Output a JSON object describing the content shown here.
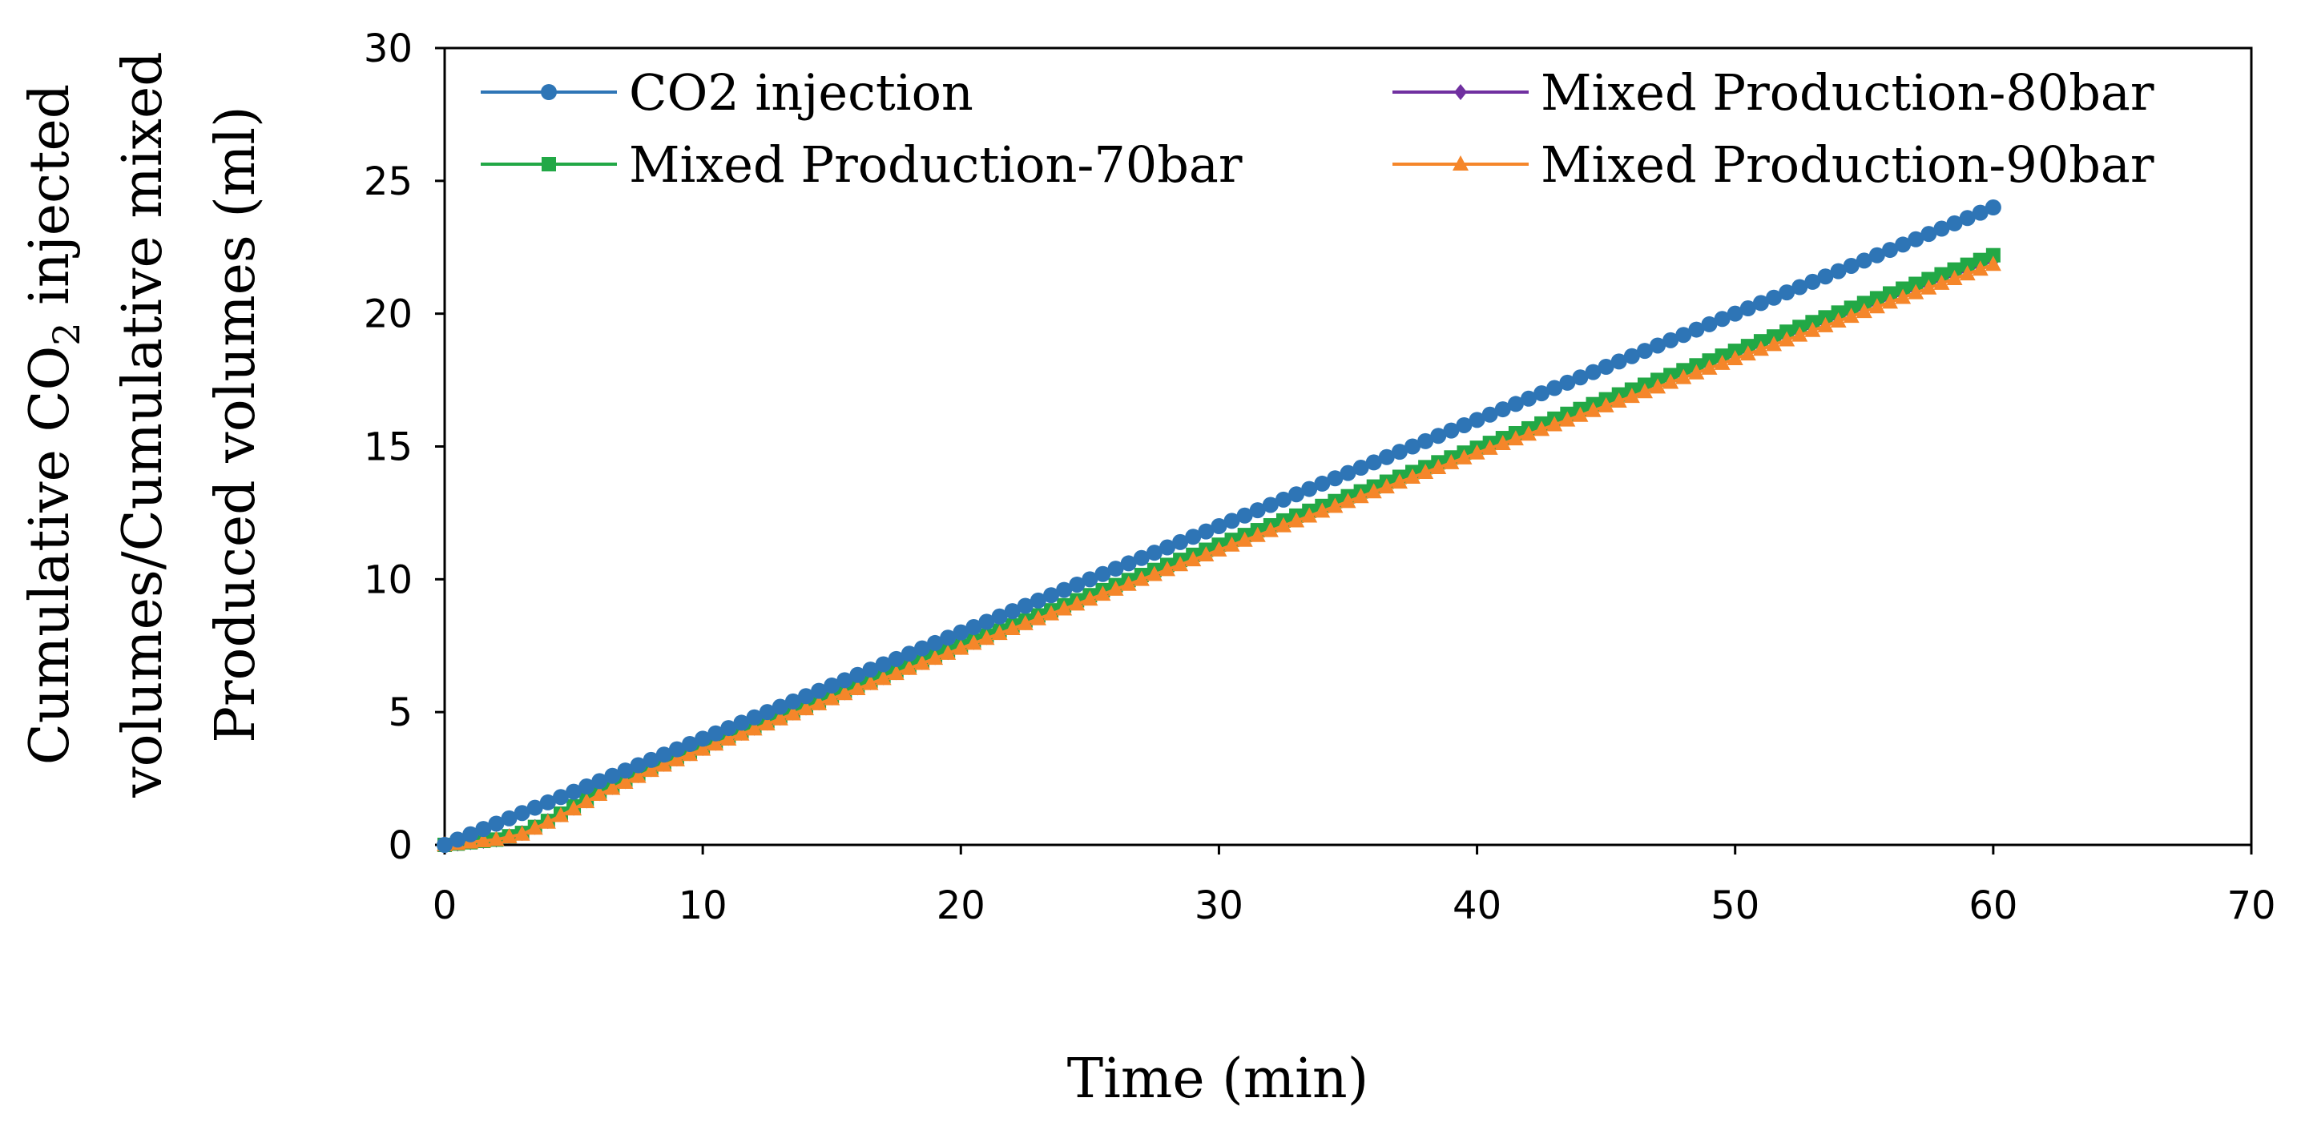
{
  "chart_data": {
    "type": "line",
    "title": "",
    "xlabel": "Time (min)",
    "ylabel_lines": [
      {
        "pre": "Cumulative CO",
        "sub": "2",
        "post": " injected"
      },
      {
        "pre": "volumes/Cumulative mixed",
        "sub": "",
        "post": ""
      },
      {
        "pre": "Produced volumes (ml)",
        "sub": "",
        "post": ""
      }
    ],
    "xlim": [
      0,
      70
    ],
    "ylim": [
      0,
      30
    ],
    "xticks": [
      0,
      10,
      20,
      30,
      40,
      50,
      60,
      70
    ],
    "yticks": [
      0,
      5,
      10,
      15,
      20,
      25,
      30
    ],
    "grid": false,
    "legend_position": "top",
    "x_sampling": {
      "start": 0,
      "end": 60,
      "step": 0.5
    },
    "series": [
      {
        "name": "CO2 injection",
        "color": "#2E75B6",
        "marker": "circle",
        "knots_x": [
          0,
          60
        ],
        "knots_y": [
          0,
          24.0
        ]
      },
      {
        "name": "Mixed Production-80bar",
        "color": "#7030A0",
        "marker": "diamond",
        "knots_x": [
          0,
          1,
          2,
          3,
          4,
          5,
          6,
          8,
          10,
          20,
          30,
          40,
          50,
          60
        ],
        "knots_y": [
          0,
          0.1,
          0.2,
          0.45,
          0.9,
          1.4,
          1.95,
          2.85,
          3.65,
          7.45,
          11.2,
          14.85,
          18.45,
          22.0
        ]
      },
      {
        "name": "Mixed Production-70bar",
        "color": "#22A846",
        "marker": "square",
        "knots_x": [
          0,
          1,
          2,
          3,
          4,
          5,
          6,
          8,
          10,
          20,
          30,
          40,
          50,
          60
        ],
        "knots_y": [
          0,
          0.1,
          0.2,
          0.45,
          0.9,
          1.45,
          2.0,
          2.9,
          3.7,
          7.5,
          11.3,
          14.95,
          18.6,
          22.2
        ]
      },
      {
        "name": "Mixed Production-90bar",
        "color": "#F5862A",
        "marker": "triangle",
        "knots_x": [
          0,
          1,
          2,
          3,
          4,
          5,
          6,
          8,
          10,
          20,
          30,
          40,
          50,
          60
        ],
        "knots_y": [
          0,
          0.1,
          0.2,
          0.4,
          0.85,
          1.35,
          1.9,
          2.8,
          3.6,
          7.4,
          11.1,
          14.75,
          18.3,
          21.85
        ]
      }
    ]
  }
}
